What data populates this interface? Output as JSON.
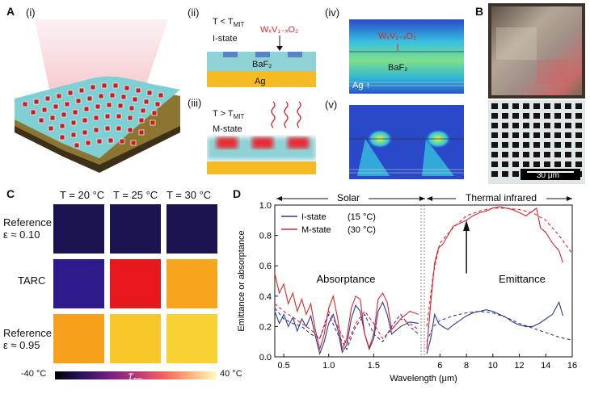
{
  "panelA": {
    "letter": "A",
    "sub_i": "(i)",
    "sub_ii": "(ii)",
    "sub_iii": "(iii)",
    "sub_iv": "(iv)",
    "sub_v": "(v)",
    "cond_low": "T < T",
    "cond_low_sub": "MIT",
    "state_i": "I-state",
    "cond_high": "T > T",
    "cond_high_sub": "MIT",
    "state_m": "M-state",
    "formula": "WₓV₁₋ₓO₂",
    "baf2": "BaF₂",
    "ag": "Ag",
    "sim_formula": "WₓV₁₋ₓO₂",
    "sim_baf2": "BaF₂",
    "sim_ag": "Ag"
  },
  "panelB": {
    "letter": "B",
    "scalebar": "30 μm"
  },
  "panelC": {
    "letter": "C",
    "temps": [
      "T = 20 °C",
      "T = 25 °C",
      "T = 30 °C"
    ],
    "rows": [
      {
        "label1": "Reference",
        "label2": "ε ≈ 0.10",
        "colors": [
          "#1a1450",
          "#1a1450",
          "#1a1450"
        ]
      },
      {
        "label1": "TARC",
        "label2": "",
        "colors": [
          "#2e1a8a",
          "#e8191e",
          "#f6a51d"
        ]
      },
      {
        "label1": "Reference",
        "label2": "ε ≈ 0.95",
        "colors": [
          "#f6a01c",
          "#f8c72a",
          "#f7d232"
        ]
      }
    ],
    "colorbar_min": "-40 °C",
    "colorbar_max": "40 °C",
    "colorbar_label": "T",
    "colorbar_label_sub": "TIR"
  },
  "panelD": {
    "letter": "D"
  },
  "chart_data": {
    "type": "line",
    "title": "",
    "xlabel": "Wavelength (μm)",
    "ylabel": "Emittance or absorptance",
    "ylim": [
      0,
      1.0
    ],
    "solar_label": "Solar",
    "thermal_label": "Thermal infrared",
    "absorptance_label": "Absorptance",
    "emittance_label": "Emittance",
    "xticks_left": [
      "0.5",
      "1.0",
      "1.5"
    ],
    "xticks_right": [
      "6",
      "8",
      "10",
      "12",
      "14",
      "16"
    ],
    "yticks": [
      "0.0",
      "0.2",
      "0.4",
      "0.6",
      "0.8",
      "1.0"
    ],
    "legend": [
      {
        "name": "I-state",
        "note": "(15 °C)",
        "color": "#2a3a8f"
      },
      {
        "name": "M-state",
        "note": "(30 °C)",
        "color": "#d9262a"
      }
    ],
    "left_range": [
      0.4,
      2.0
    ],
    "right_range": [
      5.0,
      16.0
    ],
    "series": [
      {
        "name": "I-state measured left",
        "color": "#2a3a8f",
        "dash": false,
        "x": [
          0.4,
          0.45,
          0.5,
          0.55,
          0.6,
          0.65,
          0.7,
          0.75,
          0.8,
          0.85,
          0.9,
          0.95,
          1.0,
          1.05,
          1.1,
          1.15,
          1.2,
          1.25,
          1.3,
          1.35,
          1.4,
          1.45,
          1.5,
          1.55,
          1.6,
          1.65,
          1.7,
          1.8,
          1.9,
          2.0
        ],
        "y": [
          0.3,
          0.22,
          0.28,
          0.2,
          0.26,
          0.17,
          0.25,
          0.2,
          0.27,
          0.14,
          0.02,
          0.1,
          0.22,
          0.28,
          0.18,
          0.03,
          0.08,
          0.25,
          0.34,
          0.3,
          0.15,
          0.05,
          0.12,
          0.3,
          0.36,
          0.28,
          0.15,
          0.2,
          0.23,
          0.22
        ]
      },
      {
        "name": "M-state measured left",
        "color": "#d9262a",
        "dash": false,
        "x": [
          0.4,
          0.45,
          0.5,
          0.55,
          0.6,
          0.65,
          0.7,
          0.75,
          0.8,
          0.85,
          0.9,
          0.95,
          1.0,
          1.05,
          1.1,
          1.15,
          1.2,
          1.25,
          1.3,
          1.35,
          1.4,
          1.45,
          1.5,
          1.55,
          1.6,
          1.65,
          1.7,
          1.8,
          1.9,
          2.0
        ],
        "y": [
          0.55,
          0.42,
          0.48,
          0.35,
          0.42,
          0.3,
          0.38,
          0.28,
          0.35,
          0.18,
          0.05,
          0.15,
          0.32,
          0.4,
          0.25,
          0.05,
          0.12,
          0.32,
          0.4,
          0.38,
          0.15,
          0.06,
          0.15,
          0.38,
          0.42,
          0.36,
          0.18,
          0.25,
          0.3,
          0.28
        ]
      },
      {
        "name": "I-state simulated left",
        "color": "#2a3a8f",
        "dash": true,
        "x": [
          0.4,
          0.5,
          0.6,
          0.7,
          0.8,
          0.9,
          1.0,
          1.1,
          1.2,
          1.3,
          1.4,
          1.5,
          1.6,
          1.7,
          1.8,
          1.9,
          2.0
        ],
        "y": [
          0.32,
          0.25,
          0.22,
          0.2,
          0.15,
          0.12,
          0.28,
          0.15,
          0.05,
          0.2,
          0.28,
          0.15,
          0.1,
          0.2,
          0.28,
          0.2,
          0.15
        ]
      },
      {
        "name": "M-state simulated left",
        "color": "#d9262a",
        "dash": true,
        "x": [
          0.4,
          0.5,
          0.6,
          0.7,
          0.8,
          0.9,
          1.0,
          1.1,
          1.2,
          1.3,
          1.4,
          1.5,
          1.6,
          1.7,
          1.8,
          1.9,
          2.0
        ],
        "y": [
          0.35,
          0.3,
          0.26,
          0.22,
          0.18,
          0.12,
          0.3,
          0.2,
          0.08,
          0.22,
          0.3,
          0.22,
          0.12,
          0.18,
          0.25,
          0.22,
          0.18
        ]
      },
      {
        "name": "I-state measured right",
        "color": "#2a3a8f",
        "dash": false,
        "x": [
          5.0,
          5.3,
          5.6,
          5.9,
          6.2,
          6.6,
          7.0,
          7.5,
          8.0,
          8.5,
          9.0,
          9.5,
          10.0,
          10.5,
          11.0,
          11.5,
          12.0,
          12.5,
          13.0,
          13.5,
          14.0,
          14.5,
          15.0,
          15.3
        ],
        "y": [
          0.02,
          0.12,
          0.28,
          0.22,
          0.2,
          0.18,
          0.21,
          0.24,
          0.27,
          0.29,
          0.3,
          0.31,
          0.3,
          0.28,
          0.26,
          0.23,
          0.21,
          0.2,
          0.2,
          0.22,
          0.25,
          0.28,
          0.36,
          0.27
        ]
      },
      {
        "name": "M-state measured right",
        "color": "#d9262a",
        "dash": false,
        "x": [
          5.0,
          5.3,
          5.6,
          5.9,
          6.2,
          6.6,
          7.0,
          7.5,
          8.0,
          8.5,
          9.0,
          9.5,
          10.0,
          10.5,
          11.0,
          11.5,
          12.0,
          12.5,
          13.0,
          13.3,
          13.6,
          14.0,
          14.5,
          15.0,
          15.3
        ],
        "y": [
          0.05,
          0.35,
          0.62,
          0.72,
          0.74,
          0.8,
          0.86,
          0.88,
          0.9,
          0.93,
          0.95,
          0.96,
          0.98,
          0.99,
          0.98,
          0.97,
          0.95,
          0.93,
          0.96,
          0.98,
          0.85,
          0.82,
          0.75,
          0.7,
          0.62
        ]
      },
      {
        "name": "I-state simulated right",
        "color": "#2a3a8f",
        "dash": true,
        "x": [
          5.0,
          5.5,
          6.0,
          7.0,
          8.0,
          9.0,
          10.0,
          11.0,
          12.0,
          13.0,
          14.0,
          15.0,
          16.0
        ],
        "y": [
          0.1,
          0.2,
          0.24,
          0.27,
          0.29,
          0.3,
          0.29,
          0.26,
          0.22,
          0.19,
          0.16,
          0.13,
          0.11
        ]
      },
      {
        "name": "M-state simulated right",
        "color": "#d9262a",
        "dash": true,
        "x": [
          5.0,
          5.5,
          6.0,
          7.0,
          8.0,
          9.0,
          10.0,
          11.0,
          12.0,
          13.0,
          14.0,
          15.0,
          16.0
        ],
        "y": [
          0.2,
          0.55,
          0.75,
          0.85,
          0.93,
          0.96,
          0.98,
          0.98,
          0.97,
          0.95,
          0.9,
          0.8,
          0.68
        ]
      }
    ]
  }
}
